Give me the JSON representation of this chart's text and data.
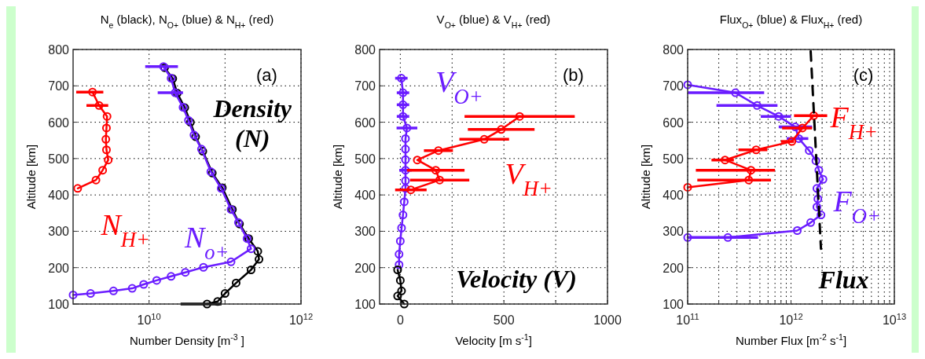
{
  "chart_data": [
    {
      "type": "line",
      "title": "N$_{e}$ (black), N$_{O+}$ (blue) & N$_{H+}$ (red)",
      "xlabel": "Number Density [m$^{-3}$ ]",
      "ylabel": "Altitude [km]",
      "log": "x",
      "xlim": [
        1000000000.0,
        1000000000000.0
      ],
      "xticks": [
        {
          "value": 10000000000.0,
          "label": "10$^{10}$"
        },
        {
          "value": 100000000000.0,
          "label": null
        },
        {
          "value": 1000000000000.0,
          "label": "10$^{12}$"
        }
      ],
      "ylim": [
        100,
        800
      ],
      "yticks": [
        100,
        200,
        300,
        400,
        500,
        600,
        700,
        800
      ],
      "grid": true,
      "marker": "circle",
      "line_style": "solid",
      "series": [
        {
          "color": "#000000",
          "x": [
            16000000000.0,
            20500000000.0,
            23500000000.0,
            29500000000.0,
            35000000000.0,
            41000000000.0,
            51000000000.0,
            68000000000.0,
            92000000000.0,
            125000000000.0,
            155000000000.0,
            205000000000.0,
            270000000000.0,
            280000000000.0,
            220000000000.0,
            140000000000.0,
            100000000000.0,
            80000000000.0,
            58000000000.0
          ],
          "values": [
            750,
            720,
            680,
            640,
            600,
            560,
            520,
            460,
            420,
            360,
            320,
            280,
            245,
            223,
            194,
            158,
            129,
            107,
            100
          ],
          "xerrors": [
            null,
            null,
            null,
            null,
            null,
            null,
            null,
            null,
            null,
            null,
            null,
            null,
            null,
            null,
            null,
            null,
            null,
            null,
            [
              26000000000.0,
              90000000000.0
            ]
          ]
        },
        {
          "name": "N$_{o+}$",
          "color": "#6a1cff",
          "x": [
            15500000000.0,
            19500000000.0,
            22000000000.0,
            28000000000.0,
            33000000000.0,
            39000000000.0,
            49000000000.0,
            65000000000.0,
            89000000000.0,
            120000000000.0,
            150000000000.0,
            195000000000.0,
            220000000000.0,
            120000000000.0,
            52000000000.0,
            30000000000.0,
            19500000000.0,
            12600000000.0,
            8500000000.0,
            6000000000.0,
            3400000000.0,
            1700000000.0,
            1000000000.0
          ],
          "values": [
            753,
            721,
            681,
            641,
            605,
            565,
            526,
            464,
            418,
            360,
            324,
            280,
            252,
            216,
            201,
            187,
            176,
            165,
            154,
            143,
            136,
            129,
            125
          ],
          "xerrors": [
            [
              8900000000.0,
              24000000000.0
            ],
            null,
            [
              13000000000.0,
              28000000000.0
            ],
            null,
            null,
            null,
            null,
            null,
            null,
            null,
            null,
            null,
            null,
            null,
            null,
            null,
            null,
            null,
            null,
            null,
            null,
            null,
            null
          ]
        },
        {
          "name": "N$_{H+}$",
          "color": "#ff0000",
          "x": [
            1800000000.0,
            2200000000.0,
            2800000000.0,
            2750000000.0,
            2700000000.0,
            2750000000.0,
            2900000000.0,
            2450000000.0,
            2000000000.0,
            1150000000.0
          ],
          "values": [
            683,
            646,
            616,
            584,
            553,
            524,
            496,
            468,
            441,
            418
          ],
          "xerrors": [
            [
              1100000000.0,
              2500000000.0
            ],
            [
              1500000000.0,
              2900000000.0
            ],
            null,
            null,
            null,
            null,
            null,
            null,
            null,
            null
          ]
        }
      ],
      "annotations": [
        "(a)",
        "Density",
        "(N)"
      ]
    },
    {
      "type": "line",
      "title": "V$_{O+}$ (blue) & V$_{H+}$ (red)",
      "xlabel": "Velocity [m s$^{-1}$]",
      "ylabel": "Altitude [km]",
      "xlim": [
        -100,
        1000
      ],
      "xticks": [
        0,
        {
          "value": 250,
          "label": null
        },
        500,
        {
          "value": 750,
          "label": null
        },
        1000
      ],
      "ylim": [
        100,
        800
      ],
      "yticks": [
        100,
        200,
        300,
        400,
        500,
        600,
        700,
        800
      ],
      "grid": true,
      "marker": "circle",
      "line_style": "solid",
      "series": [
        {
          "name": "V$_{O+}$",
          "color": "#6a1cff",
          "x": [
            5,
            13,
            13,
            13,
            32,
            25,
            25,
            25,
            25,
            25,
            25,
            19,
            13,
            6,
            0,
            -6,
            -6
          ],
          "values": [
            721,
            681,
            648,
            616,
            584,
            555,
            526,
            497,
            468,
            439,
            418,
            381,
            345,
            309,
            273,
            237,
            208
          ],
          "xerrors": [
            30,
            30,
            30,
            30,
            50,
            null,
            null,
            null,
            30,
            null,
            null,
            null,
            null,
            null,
            null,
            null,
            null
          ]
        },
        {
          "color": "#000000",
          "x": [
            -13,
            0,
            6,
            -13,
            19
          ],
          "values": [
            194,
            165,
            136,
            122,
            100
          ]
        },
        {
          "name": "V$_{H+}$",
          "color": "#ff0000",
          "x": [
            51,
            190,
            171,
            82,
            184,
            405,
            487,
            576
          ],
          "values": [
            414,
            441,
            468,
            496,
            522,
            553,
            580,
            616
          ],
          "xerrors": [
            76,
            143,
            139,
            null,
            70,
            120,
            161,
            266
          ]
        }
      ],
      "annotations": [
        "(b)",
        "Velocity (V)"
      ]
    },
    {
      "type": "line",
      "title": "Flux$_{O+}$ (blue) & Flux$_{H+}$ (red)",
      "xlabel": "Number Flux [m$^{-2}$ s$^{-1}$]",
      "ylabel": "Altitude [km]",
      "log": "x",
      "xlim": [
        100000000000.0,
        10000000000000.0
      ],
      "xticks": [
        {
          "value": 100000000000.0,
          "label": "10$^{11}$"
        },
        {
          "value": 200000000000.0,
          "label": null
        },
        {
          "value": 300000000000.0,
          "label": null
        },
        {
          "value": 400000000000.0,
          "label": null
        },
        {
          "value": 500000000000.0,
          "label": null
        },
        {
          "value": 600000000000.0,
          "label": null
        },
        {
          "value": 700000000000.0,
          "label": null
        },
        {
          "value": 800000000000.0,
          "label": null
        },
        {
          "value": 900000000000.0,
          "label": null
        },
        {
          "value": 1000000000000.0,
          "label": "10$^{12}$"
        },
        {
          "value": 2000000000000.0,
          "label": null
        },
        {
          "value": 3000000000000.0,
          "label": null
        },
        {
          "value": 4000000000000.0,
          "label": null
        },
        {
          "value": 5000000000000.0,
          "label": null
        },
        {
          "value": 6000000000000.0,
          "label": null
        },
        {
          "value": 7000000000000.0,
          "label": null
        },
        {
          "value": 8000000000000.0,
          "label": null
        },
        {
          "value": 9000000000000.0,
          "label": null
        },
        {
          "value": 10000000000000.0,
          "label": "10$^{13}$"
        }
      ],
      "ylim": [
        100,
        800
      ],
      "yticks": [
        100,
        200,
        300,
        400,
        500,
        600,
        700,
        800
      ],
      "grid": true,
      "marker": "circle",
      "line_style": "solid",
      "series": [
        {
          "name": "F$_{O+}$",
          "color": "#6a1cff",
          "x": [
            100000000000.0,
            290000000000.0,
            470000000000.0,
            760000000000.0,
            1100000000000.0,
            1190000000000.0,
            1500000000000.0,
            1740000000000.0,
            1860000000000.0,
            2040000000000.0,
            1780000000000.0,
            1820000000000.0,
            1780000000000.0,
            1950000000000.0,
            1550000000000.0,
            1150000000000.0,
            245000000000.0,
            100000000000.0
          ],
          "values": [
            703,
            681,
            646,
            616,
            587,
            555,
            522,
            494,
            468,
            443,
            418,
            389,
            367,
            345,
            324,
            302,
            283,
            283
          ],
          "xerrors": [
            null,
            [
              100000000000.0,
              550000000000.0
            ],
            [
              190000000000.0,
              740000000000.0
            ],
            [
              510000000000.0,
              1000000000000.0
            ],
            [
              760000000000.0,
              1600000000000.0
            ],
            [
              910000000000.0,
              1470000000000.0
            ],
            null,
            null,
            null,
            null,
            null,
            null,
            null,
            null,
            null,
            null,
            [
              100000000000.0,
              480000000000.0
            ],
            null
          ]
        },
        {
          "name": "F$_{H+}$",
          "color": "#ff0000",
          "x": [
            1660000000000.0,
            1290000000000.0,
            1020000000000.0,
            460000000000.0,
            230000000000.0,
            410000000000.0,
            390000000000.0,
            100000000000.0
          ],
          "values": [
            618,
            584,
            547,
            524,
            496,
            468,
            441,
            421
          ],
          "xerrors": [
            [
              1070000000000.0,
              2240000000000.0
            ],
            [
              820000000000.0,
              1600000000000.0
            ],
            [
              800000000000.0,
              1070000000000.0
            ],
            [
              310000000000.0,
              590000000000.0
            ],
            [
              170000000000.0,
              280000000000.0
            ],
            [
              120000000000.0,
              700000000000.0
            ],
            [
              124000000000.0,
              640000000000.0
            ],
            null
          ]
        },
        {
          "color": "#000000",
          "x": [
            1550000000000.0,
            1950000000000.0
          ],
          "values": [
            795,
            252
          ],
          "line_style": "dashed",
          "marker": "none"
        }
      ],
      "annotations": [
        "(c)",
        "Flux"
      ]
    }
  ]
}
